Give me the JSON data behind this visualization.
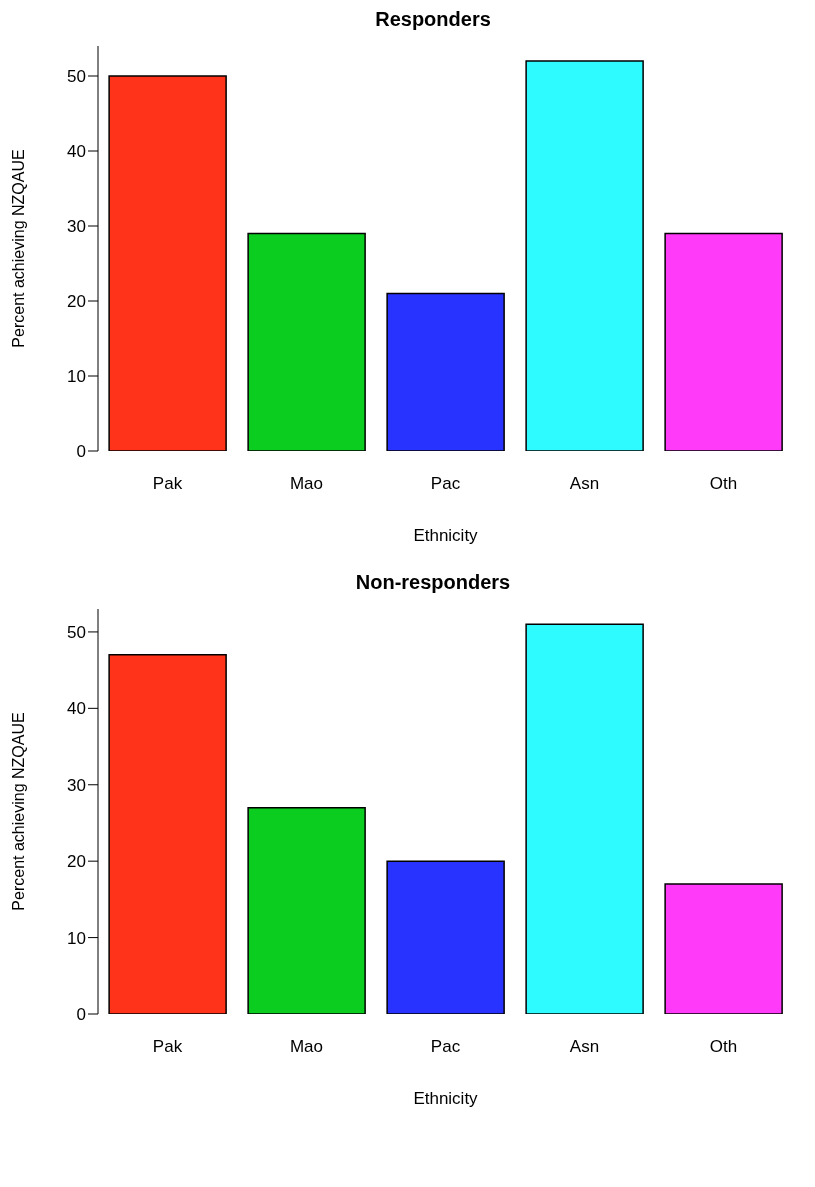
{
  "chart_data": [
    {
      "type": "bar",
      "title": "Responders",
      "xlabel": "Ethnicity",
      "ylabel": "Percent achieving NZQAUE",
      "categories": [
        "Pak",
        "Mao",
        "Pac",
        "Asn",
        "Oth"
      ],
      "values": [
        50,
        29,
        21,
        52,
        29
      ],
      "colors": [
        "#ff3319",
        "#0acd1f",
        "#2933ff",
        "#2dfbff",
        "#ff3af8"
      ],
      "ylim": [
        0,
        54
      ],
      "yticks": [
        0,
        10,
        20,
        30,
        40,
        50
      ],
      "grid": false
    },
    {
      "type": "bar",
      "title": "Non-responders",
      "xlabel": "Ethnicity",
      "ylabel": "Percent achieving NZQAUE",
      "categories": [
        "Pak",
        "Mao",
        "Pac",
        "Asn",
        "Oth"
      ],
      "values": [
        47,
        27,
        20,
        51,
        17
      ],
      "colors": [
        "#ff3319",
        "#0acd1f",
        "#2933ff",
        "#2dfbff",
        "#ff3af8"
      ],
      "ylim": [
        0,
        53
      ],
      "yticks": [
        0,
        10,
        20,
        30,
        40,
        50
      ],
      "grid": false
    }
  ]
}
